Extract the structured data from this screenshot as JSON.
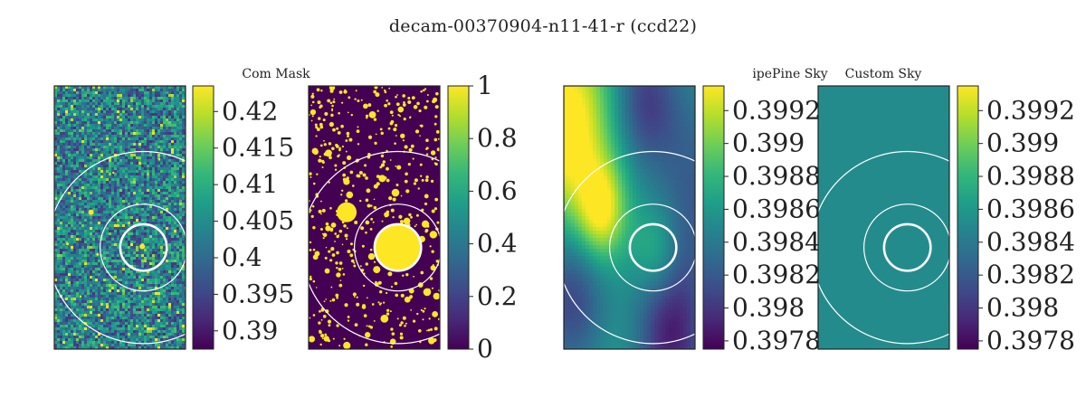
{
  "suptitle": "decam-00370904-n11-41-r (ccd22)",
  "colors": {
    "viridis": [
      "#440154",
      "#482878",
      "#3e4a89",
      "#31688e",
      "#26828e",
      "#1f9e89",
      "#35b779",
      "#6ece58",
      "#b5de2b",
      "#fde725"
    ],
    "ring": "#ffffff",
    "frame": "#222222",
    "uniform_sky": "#297b8e"
  },
  "chart_data": [
    {
      "type": "heatmap",
      "panel": "image",
      "title": "",
      "description_kind": "noisy image with sources",
      "colorbar": {
        "ticks": [
          "0.39",
          "0.395",
          "0.4",
          "0.405",
          "0.41",
          "0.415",
          "0.42"
        ],
        "vmin": 0.3875,
        "vmax": 0.4235
      },
      "rings_radius_fraction": [
        0.17,
        0.33,
        0.73
      ]
    },
    {
      "type": "heatmap",
      "panel": "mask",
      "title": "Com Mask",
      "description_kind": "binary source mask",
      "colorbar": {
        "ticks": [
          "0",
          "0.2",
          "0.4",
          "0.6",
          "0.8",
          "1"
        ],
        "vmin": 0,
        "vmax": 1
      },
      "rings_radius_fraction": [
        0.17,
        0.33,
        0.73
      ]
    },
    {
      "type": "heatmap",
      "panel": "pipeline-sky",
      "title": "ipePine Sky",
      "description_kind": "smooth background model",
      "colorbar": {
        "ticks": [
          "0.3978",
          "0.398",
          "0.3982",
          "0.3984",
          "0.3986",
          "0.3988",
          "0.399",
          "0.3992"
        ],
        "vmin": 0.39775,
        "vmax": 0.39935
      },
      "rings_radius_fraction": [
        0.17,
        0.33,
        0.73
      ]
    },
    {
      "type": "heatmap",
      "panel": "custom-sky",
      "title": "Custom Sky",
      "description_kind": "constant background",
      "colorbar": {
        "ticks": [
          "0.3978",
          "0.398",
          "0.3982",
          "0.3984",
          "0.3986",
          "0.3988",
          "0.399",
          "0.3992"
        ],
        "vmin": 0.39775,
        "vmax": 0.39935
      },
      "value": 0.39852,
      "rings_radius_fraction": [
        0.17,
        0.33,
        0.73
      ]
    }
  ]
}
